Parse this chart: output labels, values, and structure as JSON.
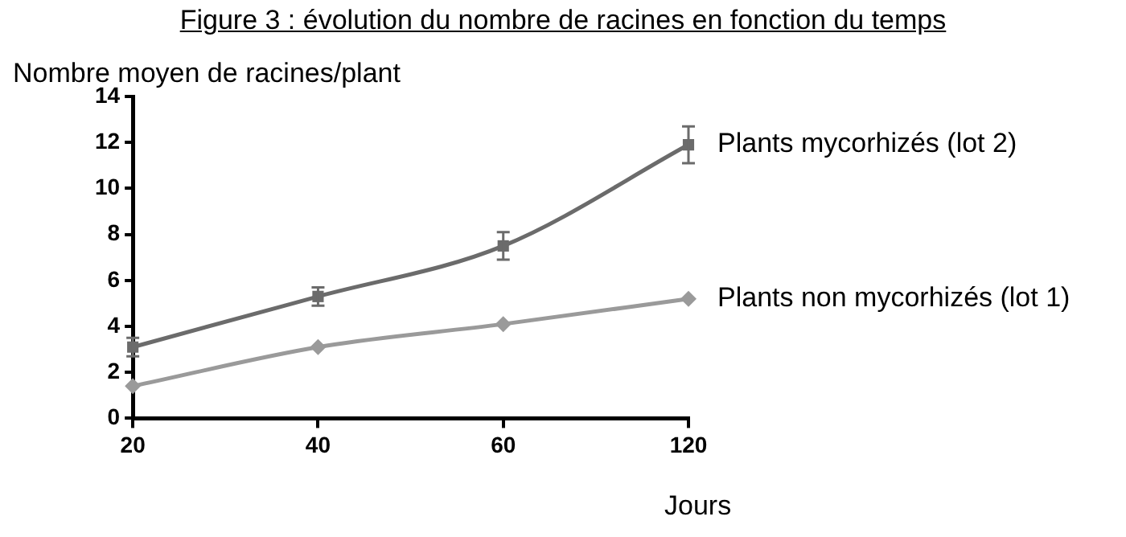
{
  "chart_data": {
    "type": "line",
    "title": "Figure 3 : évolution du nombre de racines en fonction du temps",
    "ylabel": "Nombre moyen de racines/plant",
    "xlabel": "Jours",
    "categories": [
      "20",
      "40",
      "60",
      "120"
    ],
    "series": [
      {
        "name": "Plants mycorhizés (lot 2)",
        "color": "#6b6b6b",
        "marker": "square",
        "values": [
          3.1,
          5.3,
          7.5,
          11.9
        ],
        "errors": [
          0.4,
          0.4,
          0.6,
          0.8
        ]
      },
      {
        "name": "Plants non mycorhizés (lot 1)",
        "color": "#9a9a9a",
        "marker": "diamond",
        "values": [
          1.4,
          3.1,
          4.1,
          5.2
        ]
      }
    ],
    "ylim": [
      0,
      14
    ],
    "yticks": [
      0,
      2,
      4,
      6,
      8,
      10,
      12,
      14
    ],
    "grid": false,
    "legend": false
  }
}
